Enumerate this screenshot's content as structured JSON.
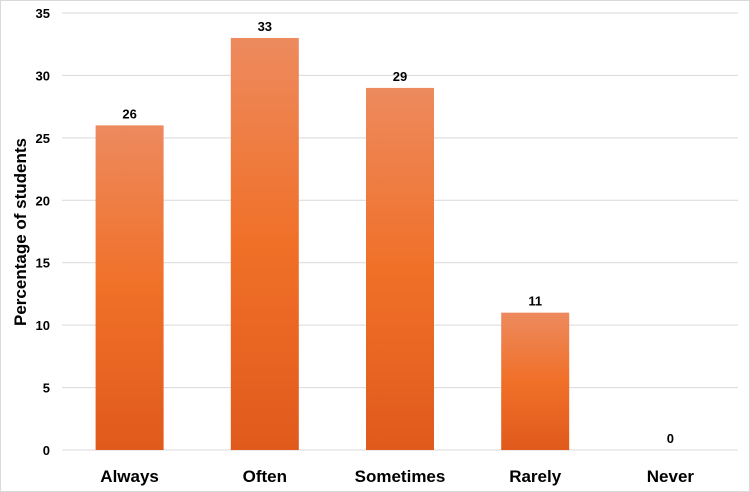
{
  "chart_data": {
    "type": "bar",
    "categories": [
      "Always",
      "Often",
      "Sometimes",
      "Rarely",
      "Never"
    ],
    "values": [
      26,
      33,
      29,
      11,
      0
    ],
    "data_labels": [
      "26",
      "33",
      "29",
      "11",
      "0"
    ],
    "title": "",
    "xlabel": "",
    "ylabel": "Percentage of students",
    "ylim": [
      0,
      35
    ],
    "yticks": [
      "0",
      "5",
      "10",
      "15",
      "20",
      "25",
      "30",
      "35"
    ],
    "grid": true,
    "legend": "none",
    "colors": {
      "bar_top": "#ED8A5E",
      "bar_bottom": "#E05A1C",
      "grid": "#D9D9D9"
    }
  }
}
